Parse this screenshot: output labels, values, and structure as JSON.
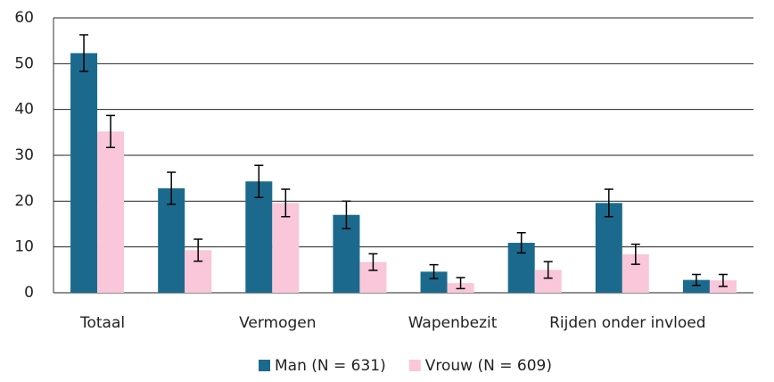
{
  "chart_data": {
    "type": "bar",
    "categories": [
      "Totaal",
      null,
      "Vermogen",
      null,
      "Wapenbezit",
      null,
      "Rijden onder invloed",
      null
    ],
    "series": [
      {
        "name": "Man (N = 631)",
        "color": "#1b6a8d",
        "values": [
          52.3,
          22.8,
          24.3,
          17.0,
          4.6,
          10.9,
          19.6,
          2.8
        ],
        "errors": [
          4.0,
          3.5,
          3.5,
          3.0,
          1.5,
          2.2,
          3.0,
          1.2
        ]
      },
      {
        "name": "Vrouw (N = 609)",
        "color": "#f9c7d9",
        "values": [
          35.2,
          9.3,
          19.6,
          6.7,
          2.1,
          5.0,
          8.4,
          2.7
        ],
        "errors": [
          3.5,
          2.4,
          3.0,
          1.8,
          1.2,
          1.8,
          2.2,
          1.3
        ]
      }
    ],
    "ylim": [
      0,
      60
    ],
    "yticks": [
      0,
      10,
      20,
      30,
      40,
      50,
      60
    ],
    "grid": true,
    "legend": "bottom"
  }
}
